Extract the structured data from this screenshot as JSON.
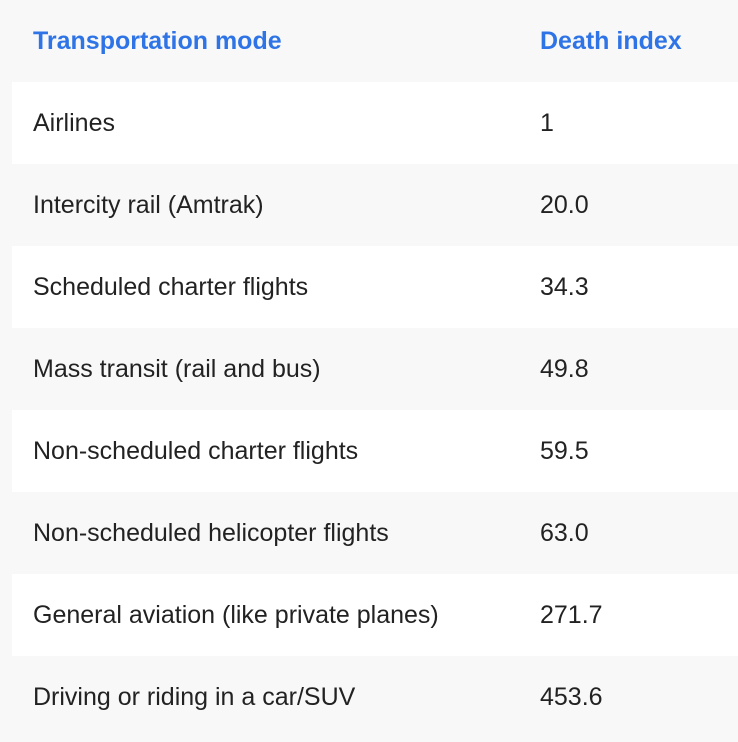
{
  "table": {
    "headers": {
      "mode": "Transportation mode",
      "index": "Death index"
    },
    "rows": [
      {
        "mode": "Airlines",
        "index": "1"
      },
      {
        "mode": "Intercity rail (Amtrak)",
        "index": "20.0"
      },
      {
        "mode": "Scheduled charter flights",
        "index": "34.3"
      },
      {
        "mode": "Mass transit (rail and bus)",
        "index": "49.8"
      },
      {
        "mode": "Non-scheduled charter flights",
        "index": "59.5"
      },
      {
        "mode": "Non-scheduled helicopter flights",
        "index": "63.0"
      },
      {
        "mode": "General aviation (like private planes)",
        "index": "271.7"
      },
      {
        "mode": "Driving or riding in a car/SUV",
        "index": "453.6"
      }
    ]
  },
  "colors": {
    "header_text": "#2f74e6",
    "body_text": "#222222",
    "row_white": "#ffffff",
    "row_gray": "#f8f8f8"
  }
}
